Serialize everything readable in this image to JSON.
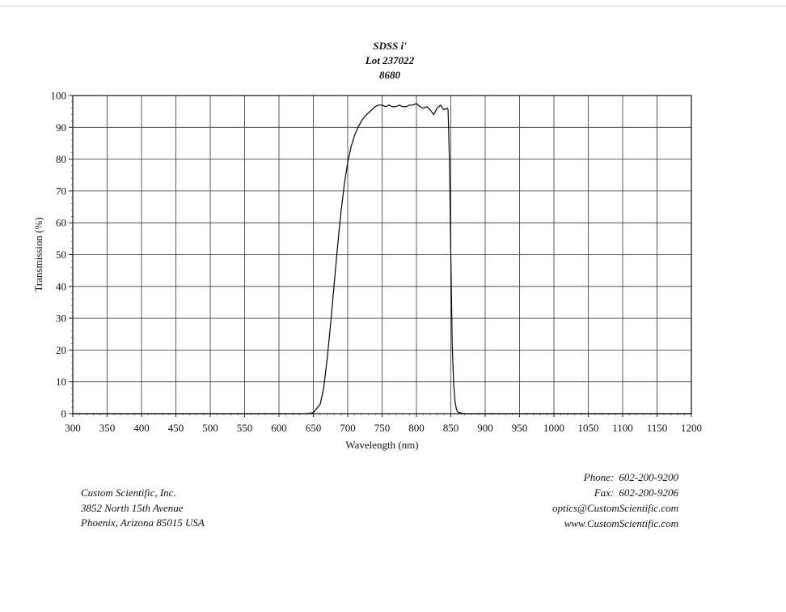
{
  "chart_data": {
    "type": "line",
    "title": "SDSS i'",
    "subtitle_lines": [
      "Lot 237022",
      "8680"
    ],
    "xlabel": "Wavelength (nm)",
    "ylabel": "Transmission (%)",
    "xlim": [
      300,
      1200
    ],
    "ylim": [
      0,
      100
    ],
    "x_ticks": [
      300,
      350,
      400,
      450,
      500,
      550,
      600,
      650,
      700,
      750,
      800,
      850,
      900,
      950,
      1000,
      1050,
      1100,
      1150,
      1200
    ],
    "y_ticks": [
      0,
      10,
      20,
      30,
      40,
      50,
      60,
      70,
      80,
      90,
      100
    ],
    "grid": true,
    "legend": "none",
    "series": [
      {
        "color": "#000000",
        "x": [
          300,
          640,
          650,
          660,
          665,
          670,
          675,
          680,
          685,
          690,
          695,
          700,
          705,
          710,
          715,
          720,
          725,
          730,
          735,
          740,
          745,
          750,
          755,
          760,
          765,
          770,
          775,
          780,
          785,
          790,
          795,
          800,
          805,
          810,
          815,
          820,
          825,
          830,
          835,
          840,
          845,
          846,
          848,
          850,
          852,
          854,
          856,
          858,
          860,
          865,
          870,
          880,
          900,
          1200
        ],
        "y": [
          0,
          0,
          0.3,
          3,
          8,
          17,
          28,
          40,
          52,
          63,
          72,
          79,
          84,
          87.5,
          90,
          92,
          93.5,
          94.5,
          95.5,
          96.5,
          97,
          97,
          96.5,
          97,
          96.5,
          96.5,
          97,
          96.5,
          96.5,
          97,
          97,
          97.5,
          96.5,
          96,
          96.5,
          95.5,
          94,
          96,
          97,
          95.5,
          96,
          95.5,
          80,
          50,
          22,
          10,
          4,
          1.5,
          0.5,
          0.2,
          0,
          0,
          0,
          0
        ]
      }
    ]
  },
  "footer": {
    "company": [
      "Custom Scientific, Inc.",
      "3852 North 15th Avenue",
      "Phoenix, Arizona 85015 USA"
    ],
    "contact": [
      {
        "label": "Phone:",
        "value": "602-200-9200"
      },
      {
        "label": "Fax:",
        "value": "602-200-9206"
      },
      {
        "label": "",
        "value": "optics@CustomScientific.com"
      },
      {
        "label": "",
        "value": "www.CustomScientific.com"
      }
    ]
  }
}
